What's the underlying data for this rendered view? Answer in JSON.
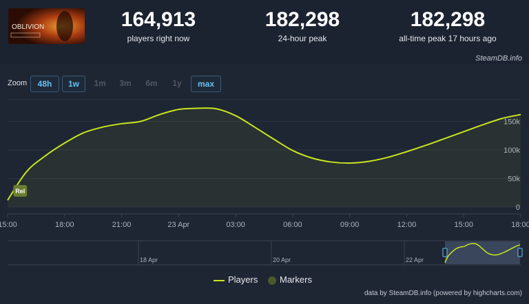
{
  "header": {
    "thumbnail_text": "OBLIVION",
    "stats": [
      {
        "value": "164,913",
        "label": "players right now"
      },
      {
        "value": "182,298",
        "label": "24-hour peak"
      },
      {
        "value": "182,298",
        "label": "all-time peak 17 hours ago"
      }
    ],
    "source_label": "SteamDB.info"
  },
  "zoom": {
    "label": "Zoom",
    "buttons": [
      {
        "label": "48h",
        "active": true
      },
      {
        "label": "1w",
        "active": true
      },
      {
        "label": "1m",
        "active": false
      },
      {
        "label": "3m",
        "active": false
      },
      {
        "label": "6m",
        "active": false
      },
      {
        "label": "1y",
        "active": false
      },
      {
        "label": "max",
        "active": true
      }
    ]
  },
  "chart_data": {
    "type": "area",
    "x_ticks": [
      "15:00",
      "18:00",
      "21:00",
      "23 Apr",
      "03:00",
      "06:00",
      "09:00",
      "12:00",
      "15:00",
      "18:00"
    ],
    "y_ticks": [
      "0",
      "50k",
      "100k",
      "150k"
    ],
    "ylim": [
      0,
      200000
    ],
    "series": [
      {
        "name": "Players",
        "color": "#c8e61e",
        "x_hours": [
          0,
          1,
          2,
          3,
          4,
          5,
          6,
          7,
          8,
          9,
          10,
          11,
          12,
          13,
          14,
          15,
          16,
          17,
          18,
          19,
          20,
          21,
          22,
          23,
          24,
          25,
          26,
          27
        ],
        "values": [
          12000,
          62000,
          90000,
          112000,
          130000,
          140000,
          146000,
          150000,
          162000,
          171000,
          173000,
          172000,
          160000,
          140000,
          119000,
          99000,
          86000,
          79000,
          77000,
          80000,
          87000,
          97000,
          108000,
          120000,
          132000,
          144000,
          155000,
          162000
        ]
      }
    ],
    "marker": {
      "label": "Rel",
      "x_hours": 0.3
    },
    "legend": [
      "Players",
      "Markers"
    ],
    "navigator_dates": [
      "18 Apr",
      "20 Apr",
      "22 Apr"
    ],
    "credit": "data by SteamDB.info (powered by highcharts.com)"
  },
  "colors": {
    "line": "#c8e61e",
    "accent": "#67c1f5",
    "marker": "#6a7d2e"
  }
}
